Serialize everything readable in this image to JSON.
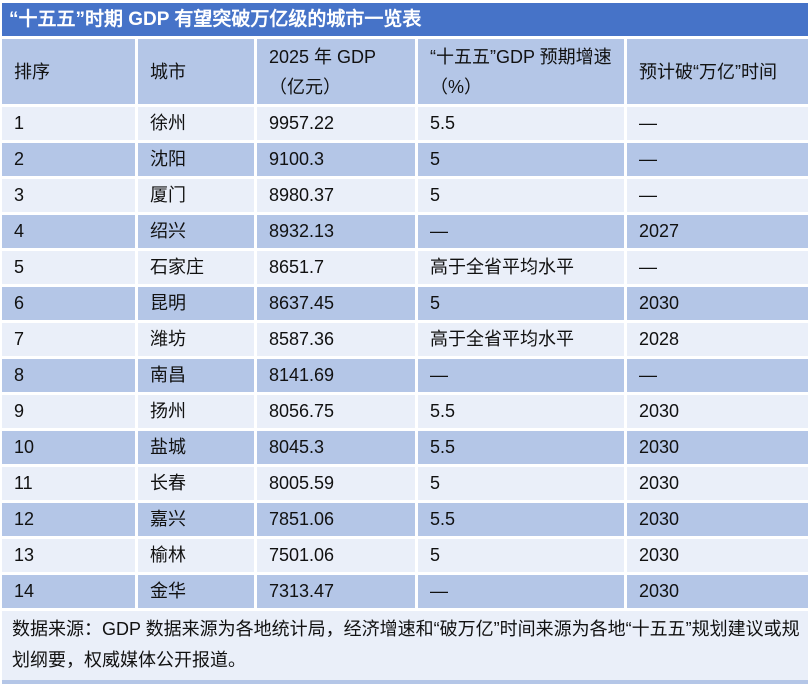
{
  "title": "“十五五”时期 GDP 有望突破万亿级的城市一览表",
  "table": {
    "headers": [
      "排序",
      "城市",
      "2025 年 GDP（亿元）",
      "“十五五”GDP 预期增速（%）",
      "预计破“万亿”时间"
    ],
    "rows": [
      [
        "1",
        "徐州",
        "9957.22",
        "5.5",
        "—"
      ],
      [
        "2",
        "沈阳",
        "9100.3",
        "5",
        "—"
      ],
      [
        "3",
        "厦门",
        "8980.37",
        "5",
        "—"
      ],
      [
        "4",
        "绍兴",
        "8932.13",
        "—",
        "2027"
      ],
      [
        "5",
        "石家庄",
        "8651.7",
        "高于全省平均水平",
        "—"
      ],
      [
        "6",
        "昆明",
        "8637.45",
        "5",
        "2030"
      ],
      [
        "7",
        "潍坊",
        "8587.36",
        "高于全省平均水平",
        "2028"
      ],
      [
        "8",
        "南昌",
        "8141.69",
        "—",
        "—"
      ],
      [
        "9",
        "扬州",
        "8056.75",
        "5.5",
        "2030"
      ],
      [
        "10",
        "盐城",
        "8045.3",
        "5.5",
        "2030"
      ],
      [
        "11",
        "长春",
        "8005.59",
        "5",
        "2030"
      ],
      [
        "12",
        "嘉兴",
        "7851.06",
        "5.5",
        "2030"
      ],
      [
        "13",
        "榆林",
        "7501.06",
        "5",
        "2030"
      ],
      [
        "14",
        "金华",
        "7313.47",
        "—",
        "2030"
      ]
    ]
  },
  "footer": {
    "text": "数据来源：GDP 数据来源为各地统计局，经济增速和“破万亿”时间来源为各地“十五五”规划建议或规划纲要，权威媒体公开报道。"
  },
  "colors": {
    "title_bar": "#4673C8",
    "header_row": "#B4C6E7",
    "row_dark": "#B4C6E7",
    "row_light": "#EAEFF9",
    "gridline": "#FFFFFF",
    "title_text": "#FFFFFF",
    "body_text": "#111111"
  }
}
